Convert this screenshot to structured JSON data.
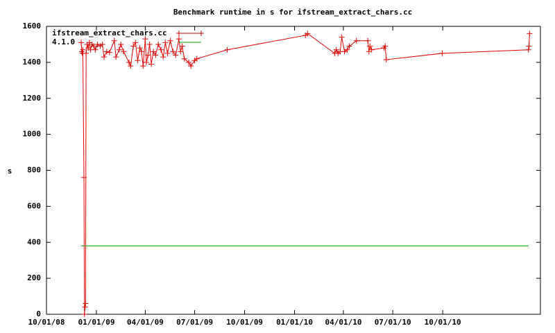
{
  "chart_data": {
    "type": "line",
    "title": "Benchmark runtime in s for ifstream_extract_chars.cc",
    "y_label": "s",
    "xlim": [
      "2008-10-01",
      "2011-03-30"
    ],
    "ylim": [
      0,
      1600
    ],
    "yticks": [
      0,
      200,
      400,
      600,
      800,
      1000,
      1200,
      1400,
      1600
    ],
    "xticks": [
      {
        "value": "2008-10-01",
        "label": "10/01/08"
      },
      {
        "value": "2009-01-01",
        "label": "01/01/09"
      },
      {
        "value": "2009-04-01",
        "label": "04/01/09"
      },
      {
        "value": "2009-07-01",
        "label": "07/01/09"
      },
      {
        "value": "2009-10-01",
        "label": "10/01/09"
      },
      {
        "value": "2010-01-01",
        "label": "01/01/10"
      },
      {
        "value": "2010-04-01",
        "label": "04/01/10"
      },
      {
        "value": "2010-07-01",
        "label": "07/01/10"
      },
      {
        "value": "2010-10-01",
        "label": "10/01/10"
      }
    ],
    "legend": "top-left",
    "series": [
      {
        "name": "ifstream_extract_chars.cc",
        "color": "#e00000",
        "markers": true,
        "x": [
          "2008-12-04",
          "2008-12-05",
          "2008-12-06",
          "2008-12-07",
          "2008-12-09",
          "2008-12-10",
          "2008-12-11",
          "2008-12-12",
          "2008-12-13",
          "2008-12-15",
          "2008-12-17",
          "2008-12-19",
          "2008-12-21",
          "2008-12-24",
          "2008-12-27",
          "2008-12-30",
          "2009-01-03",
          "2009-01-08",
          "2009-01-12",
          "2009-01-15",
          "2009-01-20",
          "2009-01-25",
          "2009-02-03",
          "2009-02-06",
          "2009-02-12",
          "2009-02-15",
          "2009-02-20",
          "2009-03-02",
          "2009-03-05",
          "2009-03-10",
          "2009-03-14",
          "2009-03-18",
          "2009-03-22",
          "2009-03-25",
          "2009-03-28",
          "2009-04-01",
          "2009-04-03",
          "2009-04-06",
          "2009-04-09",
          "2009-04-12",
          "2009-04-16",
          "2009-04-20",
          "2009-04-25",
          "2009-04-30",
          "2009-05-04",
          "2009-05-08",
          "2009-05-12",
          "2009-05-17",
          "2009-05-22",
          "2009-05-27",
          "2009-06-02",
          "2009-06-05",
          "2009-06-08",
          "2009-06-12",
          "2009-06-20",
          "2009-06-24",
          "2009-07-01",
          "2009-07-05",
          "2009-08-30",
          "2010-01-21",
          "2010-01-25",
          "2010-03-16",
          "2010-03-19",
          "2010-03-22",
          "2010-03-26",
          "2010-03-29",
          "2010-04-03",
          "2010-04-08",
          "2010-04-12",
          "2010-04-25",
          "2010-05-16",
          "2010-05-18",
          "2010-05-20",
          "2010-05-23",
          "2010-06-15",
          "2010-06-17",
          "2010-06-19",
          "2010-09-30",
          "2011-03-08",
          "2011-03-09",
          "2011-03-10"
        ],
        "values": [
          1510,
          1460,
          1450,
          1470,
          760,
          0,
          40,
          60,
          1450,
          1500,
          1480,
          1510,
          1470,
          1500,
          1490,
          1470,
          1500,
          1490,
          1500,
          1430,
          1460,
          1455,
          1520,
          1430,
          1470,
          1500,
          1460,
          1400,
          1380,
          1490,
          1510,
          1410,
          1480,
          1460,
          1380,
          1530,
          1400,
          1440,
          1500,
          1390,
          1460,
          1440,
          1500,
          1470,
          1430,
          1510,
          1450,
          1520,
          1460,
          1440,
          1530,
          1460,
          1490,
          1420,
          1400,
          1380,
          1410,
          1420,
          1470,
          1550,
          1560,
          1450,
          1470,
          1450,
          1460,
          1540,
          1460,
          1470,
          1490,
          1520,
          1520,
          1460,
          1490,
          1470,
          1480,
          1490,
          1415,
          1450,
          1470,
          1490,
          1560
        ]
      },
      {
        "name": "4.1.0",
        "color": "#00a000",
        "markers": false,
        "x": [
          "2008-12-04",
          "2011-03-08"
        ],
        "values": [
          380,
          380
        ]
      }
    ]
  }
}
